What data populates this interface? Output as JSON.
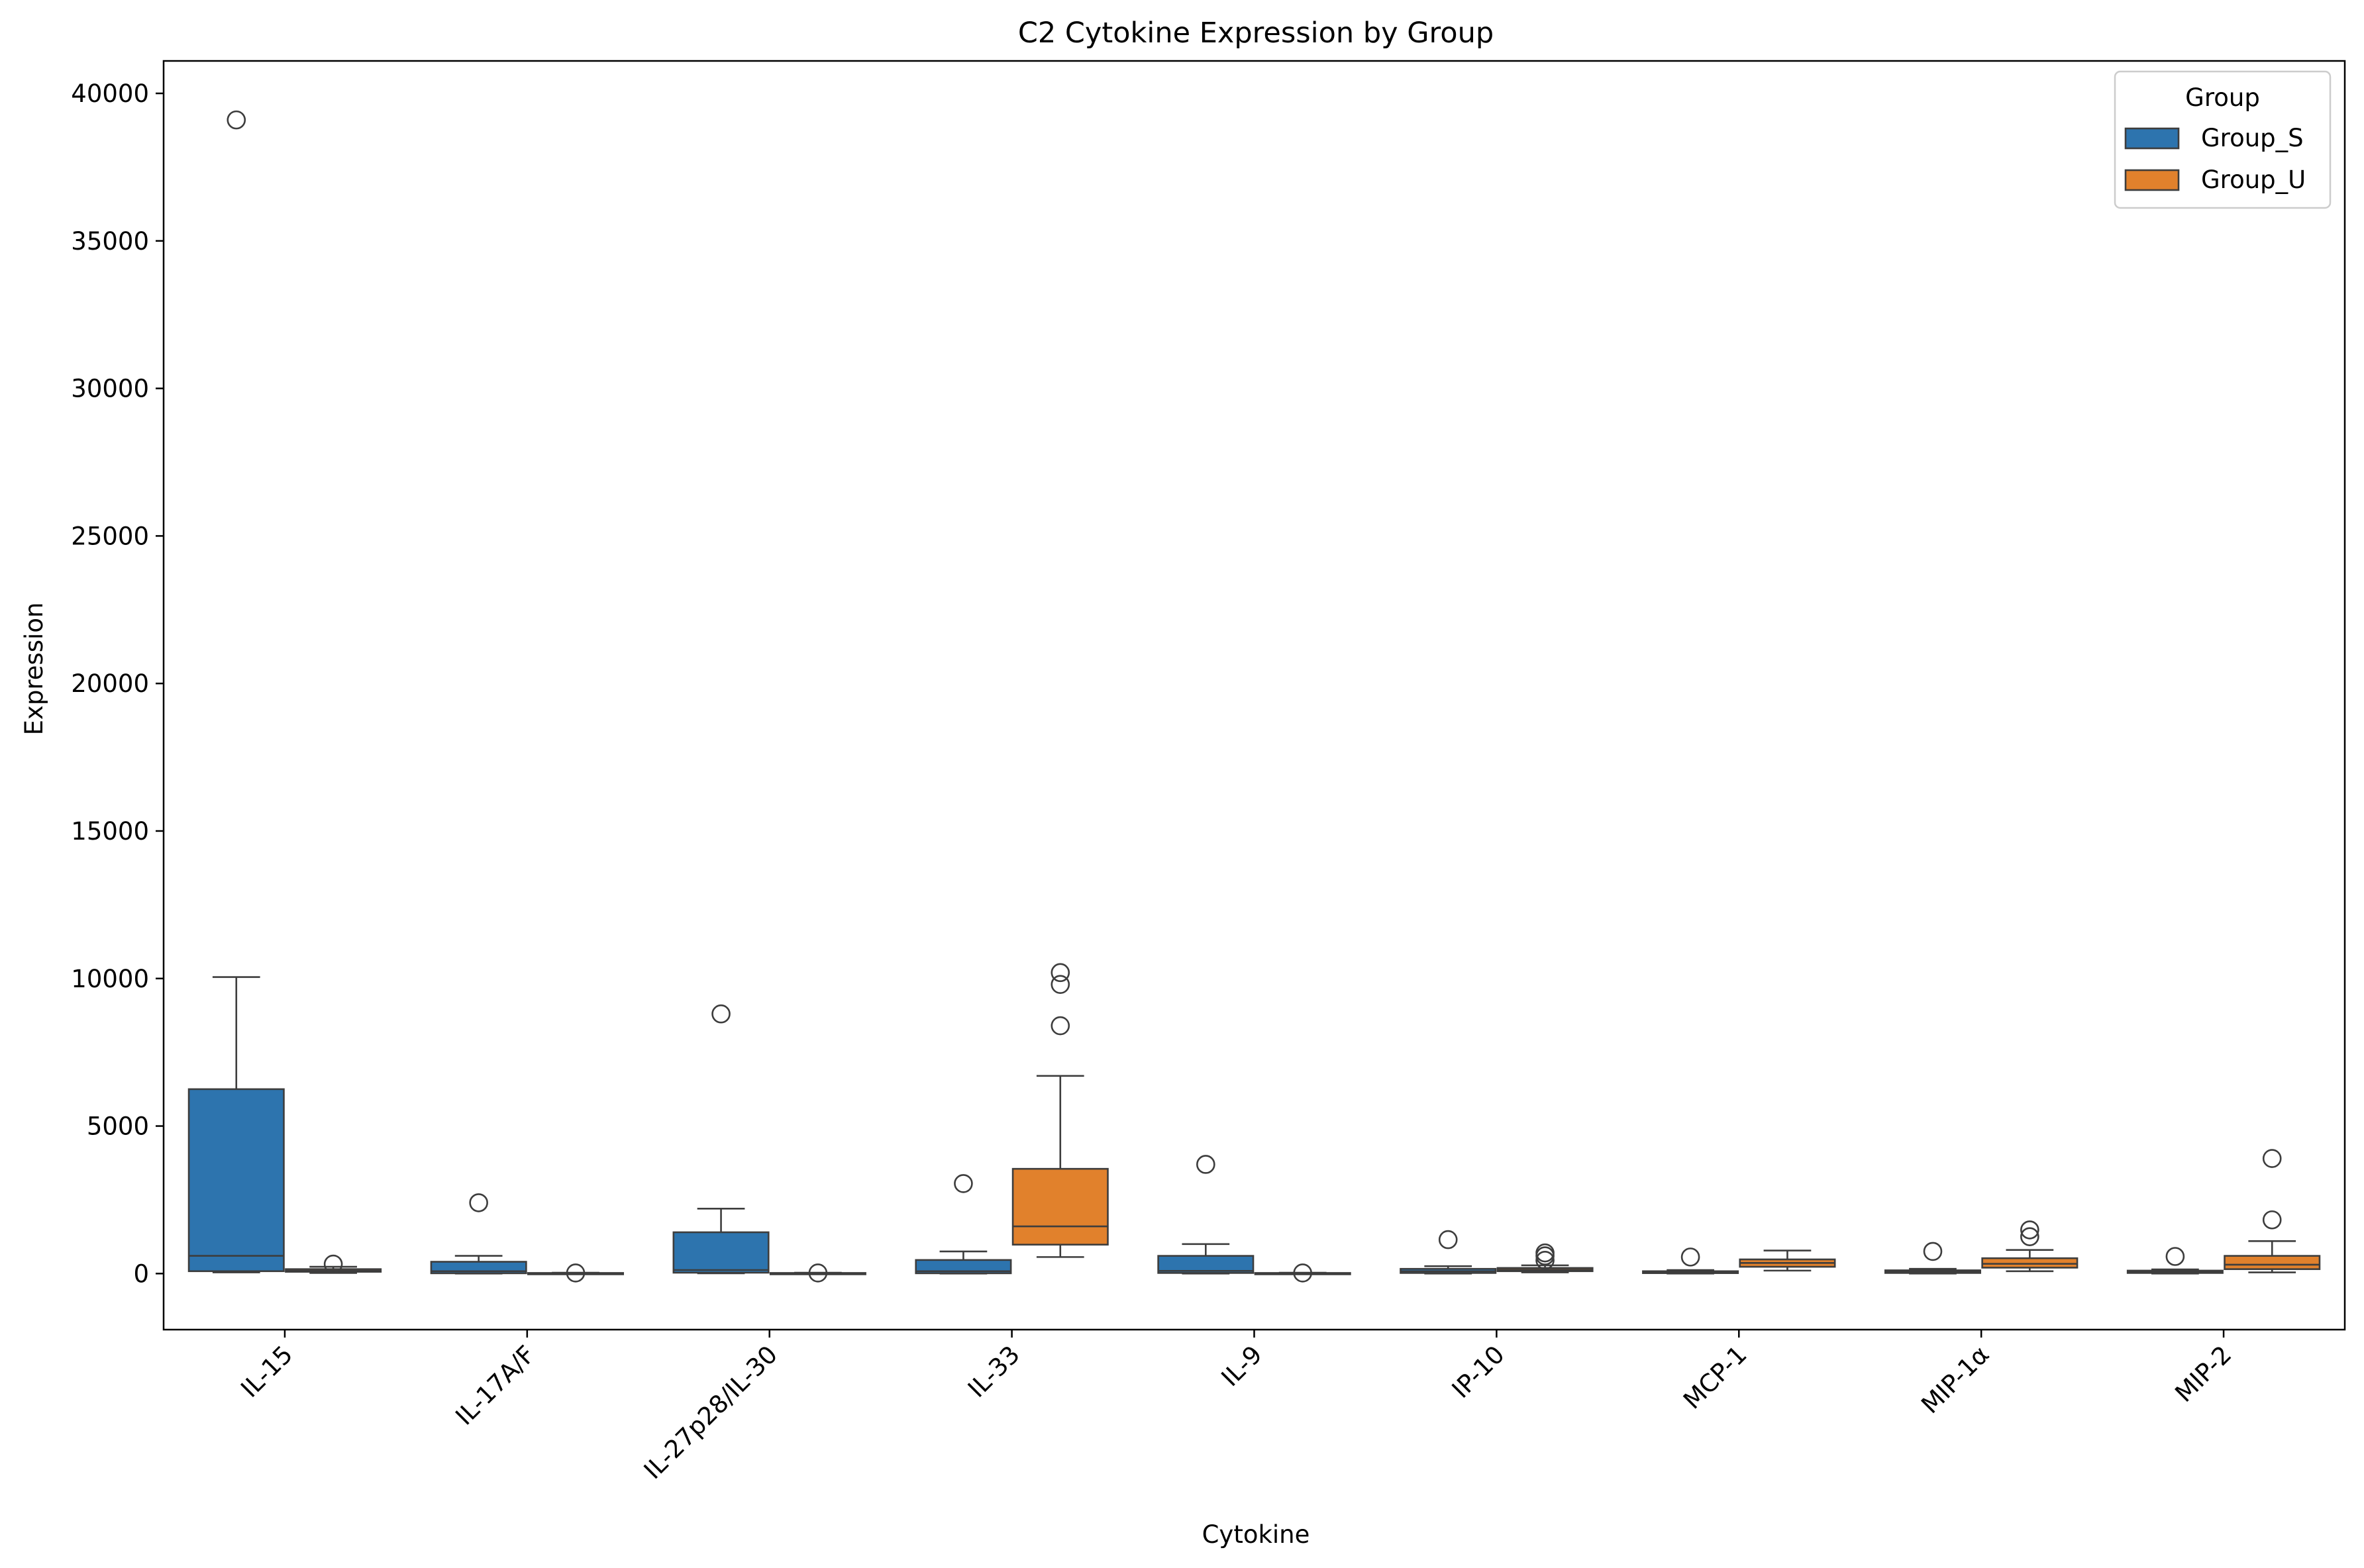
{
  "chart_data": {
    "type": "box",
    "title": "C2 Cytokine Expression by Group",
    "xlabel": "Cytokine",
    "ylabel": "Expression",
    "ylim": [
      -1900,
      41100
    ],
    "yticks": [
      0,
      5000,
      10000,
      15000,
      20000,
      25000,
      30000,
      35000,
      40000
    ],
    "categories": [
      "IL-15",
      "IL-17A/F",
      "IL-27p28/IL-30",
      "IL-33",
      "IL-9",
      "IP-10",
      "MCP-1",
      "MIP-1α",
      "MIP-2"
    ],
    "legend": {
      "title": "Group",
      "position": "top-right"
    },
    "series": [
      {
        "name": "Group_S",
        "color": "#2d74ae",
        "boxes": [
          {
            "whisker_low": 40,
            "q1": 80,
            "median": 600,
            "q3": 6250,
            "whisker_high": 10050,
            "outliers": [
              39100
            ]
          },
          {
            "whisker_low": 0,
            "q1": 10,
            "median": 80,
            "q3": 400,
            "whisker_high": 600,
            "outliers": [
              2400
            ]
          },
          {
            "whisker_low": 10,
            "q1": 30,
            "median": 120,
            "q3": 1400,
            "whisker_high": 2200,
            "outliers": [
              8800
            ]
          },
          {
            "whisker_low": 0,
            "q1": 10,
            "median": 80,
            "q3": 460,
            "whisker_high": 750,
            "outliers": [
              3050
            ]
          },
          {
            "whisker_low": 0,
            "q1": 20,
            "median": 90,
            "q3": 600,
            "whisker_high": 1000,
            "outliers": [
              3700
            ]
          },
          {
            "whisker_low": 0,
            "q1": 20,
            "median": 80,
            "q3": 160,
            "whisker_high": 250,
            "outliers": [
              1150
            ]
          },
          {
            "whisker_low": 0,
            "q1": 15,
            "median": 40,
            "q3": 80,
            "whisker_high": 120,
            "outliers": [
              560
            ]
          },
          {
            "whisker_low": 0,
            "q1": 20,
            "median": 60,
            "q3": 110,
            "whisker_high": 160,
            "outliers": [
              750
            ]
          },
          {
            "whisker_low": 0,
            "q1": 20,
            "median": 60,
            "q3": 100,
            "whisker_high": 140,
            "outliers": [
              580
            ]
          }
        ]
      },
      {
        "name": "Group_U",
        "color": "#e1812c",
        "boxes": [
          {
            "whisker_low": 20,
            "q1": 60,
            "median": 90,
            "q3": 150,
            "whisker_high": 230,
            "outliers": [
              320
            ]
          },
          {
            "whisker_low": 0,
            "q1": 5,
            "median": 10,
            "q3": 20,
            "whisker_high": 30,
            "outliers": [
              20
            ]
          },
          {
            "whisker_low": 0,
            "q1": 5,
            "median": 10,
            "q3": 20,
            "whisker_high": 30,
            "outliers": [
              20
            ]
          },
          {
            "whisker_low": 560,
            "q1": 980,
            "median": 1600,
            "q3": 3550,
            "whisker_high": 6700,
            "outliers": [
              8400,
              9800,
              10200
            ]
          },
          {
            "whisker_low": 0,
            "q1": 5,
            "median": 10,
            "q3": 20,
            "whisker_high": 30,
            "outliers": [
              20
            ]
          },
          {
            "whisker_low": 40,
            "q1": 80,
            "median": 130,
            "q3": 190,
            "whisker_high": 280,
            "outliers": [
              450,
              600,
              700
            ]
          },
          {
            "whisker_low": 100,
            "q1": 230,
            "median": 360,
            "q3": 480,
            "whisker_high": 780,
            "outliers": []
          },
          {
            "whisker_low": 80,
            "q1": 200,
            "median": 330,
            "q3": 520,
            "whisker_high": 800,
            "outliers": [
              1250,
              1480
            ]
          },
          {
            "whisker_low": 40,
            "q1": 150,
            "median": 300,
            "q3": 600,
            "whisker_high": 1100,
            "outliers": [
              1820,
              3900
            ]
          }
        ]
      }
    ]
  }
}
